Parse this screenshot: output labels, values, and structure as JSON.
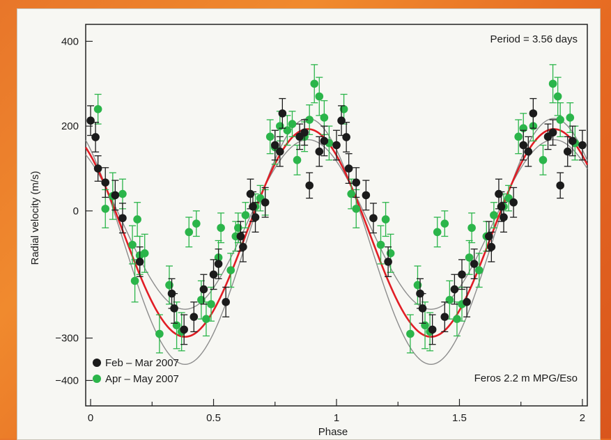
{
  "chart_data": {
    "type": "scatter",
    "xlabel": "Phase",
    "ylabel": "Radial velocity (m/s)",
    "xlim": [
      -0.02,
      2.02
    ],
    "ylim": [
      -460,
      440
    ],
    "x_ticks": [
      0,
      0.5,
      1,
      1.5,
      2
    ],
    "x_tick_labels": [
      "0",
      "0.5",
      "1",
      "1.5",
      "2"
    ],
    "y_ticks": [
      400,
      200,
      0,
      -300,
      -400
    ],
    "y_tick_labels": [
      "400",
      "200",
      "0",
      "−300",
      "−400"
    ],
    "annotation_period": "Period = 3.56 days",
    "annotation_instrument": "Feros 2.2 m MPG/Eso",
    "legend_position": "bottom-left",
    "colors": {
      "black_series": "#1b1b1b",
      "green_series": "#2bb54a",
      "fit": "#e11d25",
      "envelope": "#8c8c8c"
    },
    "fit": {
      "amplitude": 245,
      "offset": -52,
      "phase_of_max": 0.884,
      "envelope_amplitudes": [
        200,
        290
      ],
      "envelope_offsets": [
        -32,
        -72
      ]
    },
    "series": [
      {
        "name": "Feb – Mar 2007",
        "points": [
          [
            0.0,
            213,
            35
          ],
          [
            0.02,
            174,
            35
          ],
          [
            0.03,
            100,
            30
          ],
          [
            0.06,
            67,
            35
          ],
          [
            0.1,
            37,
            35
          ],
          [
            0.13,
            -17,
            35
          ],
          [
            0.2,
            -120,
            35
          ],
          [
            0.33,
            -195,
            35
          ],
          [
            0.34,
            -230,
            35
          ],
          [
            0.38,
            -280,
            35
          ],
          [
            0.42,
            -250,
            35
          ],
          [
            0.46,
            -185,
            35
          ],
          [
            0.5,
            -150,
            35
          ],
          [
            0.52,
            -125,
            35
          ],
          [
            0.55,
            -215,
            35
          ],
          [
            0.61,
            -60,
            35
          ],
          [
            0.62,
            -85,
            35
          ],
          [
            0.65,
            40,
            35
          ],
          [
            0.66,
            10,
            35
          ],
          [
            0.67,
            -15,
            35
          ],
          [
            0.71,
            20,
            35
          ],
          [
            0.75,
            155,
            35
          ],
          [
            0.77,
            140,
            35
          ],
          [
            0.78,
            230,
            35
          ],
          [
            0.85,
            175,
            30
          ],
          [
            0.87,
            185,
            30
          ],
          [
            0.89,
            60,
            30
          ],
          [
            0.93,
            140,
            35
          ],
          [
            0.95,
            165,
            35
          ],
          [
            1.0,
            155,
            35
          ],
          [
            1.02,
            213,
            35
          ],
          [
            1.04,
            174,
            35
          ],
          [
            1.05,
            100,
            35
          ],
          [
            1.08,
            67,
            35
          ],
          [
            1.12,
            37,
            35
          ],
          [
            1.15,
            -17,
            35
          ],
          [
            1.21,
            -120,
            35
          ],
          [
            1.34,
            -195,
            35
          ],
          [
            1.35,
            -230,
            35
          ],
          [
            1.39,
            -280,
            35
          ],
          [
            1.44,
            -250,
            35
          ],
          [
            1.48,
            -185,
            35
          ],
          [
            1.51,
            -150,
            35
          ],
          [
            1.53,
            -215,
            35
          ],
          [
            1.56,
            -125,
            35
          ],
          [
            1.62,
            -60,
            35
          ],
          [
            1.63,
            -85,
            35
          ],
          [
            1.66,
            40,
            35
          ],
          [
            1.67,
            10,
            35
          ],
          [
            1.68,
            -15,
            35
          ],
          [
            1.72,
            20,
            35
          ],
          [
            1.76,
            155,
            35
          ],
          [
            1.78,
            140,
            35
          ],
          [
            1.8,
            230,
            35
          ],
          [
            1.86,
            175,
            30
          ],
          [
            1.88,
            185,
            30
          ],
          [
            1.91,
            60,
            30
          ],
          [
            1.94,
            140,
            35
          ],
          [
            1.96,
            165,
            35
          ],
          [
            2.0,
            155,
            35
          ]
        ]
      },
      {
        "name": "Apr – May 2007",
        "points": [
          [
            0.03,
            240,
            35
          ],
          [
            0.06,
            5,
            45
          ],
          [
            0.09,
            35,
            55
          ],
          [
            0.13,
            40,
            35
          ],
          [
            0.17,
            -80,
            45
          ],
          [
            0.18,
            -165,
            50
          ],
          [
            0.19,
            -20,
            40
          ],
          [
            0.2,
            -105,
            45
          ],
          [
            0.22,
            -100,
            45
          ],
          [
            0.28,
            -290,
            45
          ],
          [
            0.32,
            -175,
            45
          ],
          [
            0.35,
            -270,
            55
          ],
          [
            0.37,
            -285,
            45
          ],
          [
            0.4,
            -50,
            35
          ],
          [
            0.43,
            -30,
            30
          ],
          [
            0.45,
            -210,
            45
          ],
          [
            0.47,
            -255,
            40
          ],
          [
            0.49,
            -220,
            40
          ],
          [
            0.52,
            -110,
            40
          ],
          [
            0.53,
            -40,
            35
          ],
          [
            0.57,
            -140,
            40
          ],
          [
            0.59,
            -60,
            35
          ],
          [
            0.6,
            -40,
            35
          ],
          [
            0.63,
            -10,
            30
          ],
          [
            0.67,
            10,
            30
          ],
          [
            0.69,
            30,
            30
          ],
          [
            0.71,
            20,
            30
          ],
          [
            0.73,
            175,
            40
          ],
          [
            0.75,
            150,
            40
          ],
          [
            0.77,
            200,
            35
          ],
          [
            0.8,
            190,
            35
          ],
          [
            0.82,
            205,
            30
          ],
          [
            0.84,
            120,
            35
          ],
          [
            0.87,
            175,
            35
          ],
          [
            0.89,
            215,
            35
          ],
          [
            0.91,
            300,
            45
          ],
          [
            0.93,
            270,
            45
          ],
          [
            0.95,
            220,
            40
          ],
          [
            0.97,
            160,
            40
          ],
          [
            1.03,
            240,
            35
          ],
          [
            1.06,
            40,
            35
          ],
          [
            1.08,
            5,
            45
          ],
          [
            1.18,
            -80,
            45
          ],
          [
            1.2,
            -20,
            40
          ],
          [
            1.22,
            -100,
            45
          ],
          [
            1.3,
            -290,
            45
          ],
          [
            1.33,
            -175,
            45
          ],
          [
            1.36,
            -270,
            55
          ],
          [
            1.38,
            -285,
            45
          ],
          [
            1.41,
            -50,
            35
          ],
          [
            1.44,
            -30,
            30
          ],
          [
            1.46,
            -210,
            45
          ],
          [
            1.49,
            -255,
            40
          ],
          [
            1.51,
            -220,
            40
          ],
          [
            1.54,
            -110,
            40
          ],
          [
            1.55,
            -40,
            35
          ],
          [
            1.58,
            -140,
            40
          ],
          [
            1.61,
            -60,
            35
          ],
          [
            1.64,
            -10,
            30
          ],
          [
            1.68,
            10,
            30
          ],
          [
            1.7,
            30,
            30
          ],
          [
            1.74,
            175,
            40
          ],
          [
            1.76,
            195,
            35
          ],
          [
            1.8,
            200,
            35
          ],
          [
            1.84,
            120,
            35
          ],
          [
            1.88,
            300,
            45
          ],
          [
            1.9,
            270,
            45
          ],
          [
            1.91,
            215,
            40
          ],
          [
            1.95,
            220,
            35
          ],
          [
            1.97,
            160,
            40
          ]
        ]
      }
    ]
  }
}
